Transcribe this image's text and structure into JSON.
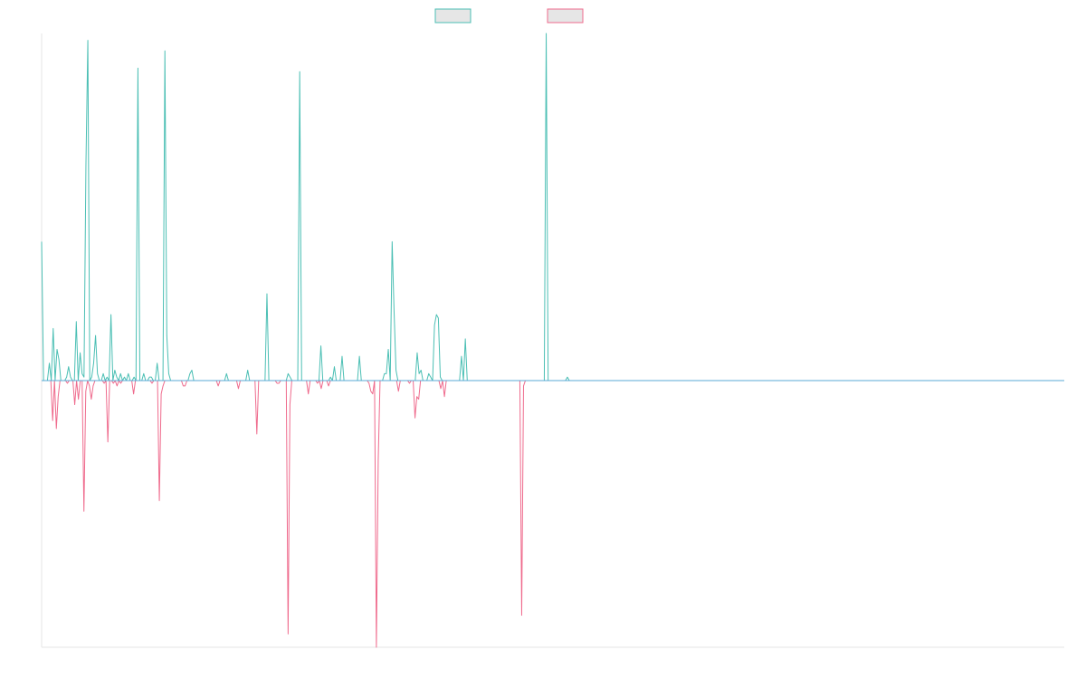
{
  "chart_data": {
    "type": "line",
    "title": "",
    "xlabel": "",
    "ylabel": "",
    "ylim": [
      -1,
      1
    ],
    "grid": false,
    "legend_position": "top-center",
    "series": [
      {
        "color": "#4bbfb4",
        "fill": "#e6e6e6",
        "values": [
          0.4,
          0,
          0,
          0,
          0.05,
          0,
          0.15,
          0,
          0.09,
          0.06,
          0,
          0,
          0,
          0.01,
          0.04,
          0.01,
          0,
          0,
          0.17,
          0,
          0.08,
          0.02,
          0.01,
          0.62,
          0.98,
          0,
          0.01,
          0.05,
          0.13,
          0.02,
          0,
          0,
          0.02,
          0,
          0.01,
          0,
          0.19,
          0,
          0.03,
          0.01,
          0,
          0.02,
          0,
          0.01,
          0,
          0.02,
          0,
          0,
          0.01,
          0,
          0.9,
          0,
          0,
          0.02,
          0,
          0,
          0.01,
          0.01,
          0,
          0,
          0.05,
          0,
          0,
          0,
          0.95,
          0.13,
          0.02,
          0,
          0,
          0,
          0,
          0,
          0,
          0,
          0,
          0,
          0,
          0.02,
          0.03,
          0,
          0,
          0,
          0,
          0,
          0,
          0,
          0,
          0,
          0,
          0,
          0,
          0,
          0,
          0,
          0,
          0,
          0.02,
          0,
          0,
          0,
          0,
          0,
          0,
          0,
          0,
          0,
          0,
          0.03,
          0,
          0,
          0,
          0,
          0,
          0,
          0,
          0,
          0,
          0.25,
          0,
          0,
          0,
          0,
          0,
          0,
          0,
          0,
          0,
          0,
          0.02,
          0.01,
          0,
          0,
          0,
          0,
          0.89,
          0,
          0,
          0,
          0,
          0,
          0,
          0,
          0,
          0,
          0,
          0.1,
          0,
          0,
          0,
          0,
          0.01,
          0,
          0.04,
          0,
          0,
          0,
          0.07,
          0,
          0,
          0,
          0,
          0,
          0,
          0,
          0,
          0.07,
          0,
          0,
          0,
          0,
          0,
          0,
          0,
          0,
          0,
          0,
          0,
          0,
          0.02,
          0.02,
          0.09,
          0,
          0.4,
          0.2,
          0.03,
          0,
          0,
          0,
          0,
          0,
          0,
          0,
          0,
          0,
          0,
          0.08,
          0.02,
          0.03,
          0,
          0,
          0,
          0.02,
          0.01,
          0,
          0.16,
          0.19,
          0.18,
          0.01,
          0,
          0,
          0,
          0,
          0,
          0,
          0,
          0,
          0,
          0,
          0.07,
          0,
          0.12,
          0,
          0,
          0,
          0,
          0,
          0,
          0,
          0,
          0,
          0,
          0,
          0,
          0,
          0,
          0,
          0,
          0,
          0,
          0,
          0,
          0,
          0,
          0,
          0,
          0,
          0,
          0,
          0,
          0,
          0,
          0,
          0,
          0,
          0,
          0,
          0,
          0,
          0,
          0,
          0,
          0,
          1,
          0,
          0,
          0,
          0,
          0,
          0,
          0,
          0,
          0,
          0,
          0.01,
          0,
          0,
          0,
          0,
          0,
          0,
          0,
          0,
          0,
          0,
          0,
          0,
          0,
          0,
          0,
          0,
          0,
          0,
          0,
          0,
          0,
          0,
          0,
          0,
          0,
          0,
          0,
          0,
          0,
          0,
          0,
          0,
          0,
          0,
          0,
          0,
          0,
          0,
          0,
          0,
          0,
          0,
          0,
          0,
          0,
          0,
          0,
          0,
          0,
          0,
          0,
          0,
          0,
          0,
          0,
          0,
          0,
          0,
          0,
          0,
          0,
          0,
          0,
          0,
          0,
          0,
          0,
          0,
          0,
          0,
          0,
          0,
          0,
          0,
          0,
          0,
          0,
          0,
          0,
          0,
          0,
          0,
          0,
          0,
          0,
          0,
          0,
          0,
          0,
          0,
          0,
          0,
          0,
          0,
          0,
          0,
          0,
          0,
          0,
          0,
          0,
          0,
          0,
          0,
          0,
          0,
          0,
          0,
          0,
          0,
          0,
          0,
          0,
          0,
          0,
          0,
          0,
          0,
          0,
          0,
          0,
          0,
          0,
          0,
          0,
          0,
          0,
          0,
          0,
          0,
          0,
          0,
          0,
          0,
          0,
          0,
          0,
          0,
          0,
          0,
          0,
          0,
          0,
          0,
          0,
          0,
          0,
          0,
          0,
          0,
          0,
          0,
          0,
          0,
          0,
          0,
          0,
          0,
          0,
          0,
          0,
          0,
          0,
          0,
          0,
          0,
          0,
          0,
          0,
          0,
          0,
          0,
          0,
          0,
          0,
          0,
          0,
          0,
          0,
          0,
          0,
          0,
          0,
          0,
          0,
          0,
          0,
          0,
          0,
          0,
          0,
          0,
          0,
          0,
          0,
          0,
          0,
          0,
          0,
          0,
          0,
          0,
          0,
          0,
          0,
          0,
          0,
          0,
          0,
          0,
          0,
          0,
          0,
          0,
          0,
          0,
          0,
          0,
          0,
          0,
          0,
          0,
          0,
          0,
          0,
          0,
          0,
          0,
          0,
          0,
          0,
          0,
          0,
          0,
          0,
          0,
          0,
          0,
          0,
          0,
          0,
          0,
          0,
          0,
          0,
          0,
          0,
          0,
          0,
          0,
          0,
          0,
          0,
          0,
          0,
          0,
          0,
          0
        ]
      },
      {
        "color": "#ef6b8d",
        "fill": "#e6e6e6",
        "values": [
          0,
          0,
          0,
          0,
          0,
          0,
          -0.15,
          0,
          -0.18,
          -0.06,
          0,
          0,
          0,
          0,
          -0.01,
          0,
          0,
          0,
          -0.09,
          0,
          -0.07,
          0,
          0,
          -0.49,
          -0.04,
          0,
          -0.02,
          -0.07,
          -0.02,
          0,
          0,
          0,
          0,
          0,
          -0.01,
          0,
          -0.23,
          0,
          0,
          -0.01,
          0,
          -0.02,
          0,
          -0.01,
          0,
          0,
          0,
          0,
          0,
          0,
          -0.05,
          0,
          0,
          0,
          0,
          0,
          0,
          0,
          0,
          0,
          -0.01,
          0,
          0,
          0,
          -0.45,
          -0.05,
          -0.02,
          0,
          0,
          0,
          0,
          0,
          0,
          0,
          0,
          0,
          0,
          -0.02,
          -0.02,
          0,
          0,
          0,
          0,
          0,
          0,
          0,
          0,
          0,
          0,
          0,
          0,
          0,
          0,
          0,
          0,
          0,
          -0.02,
          0,
          0,
          0,
          0,
          0,
          0,
          0,
          0,
          0,
          0,
          -0.03,
          0,
          0,
          0,
          0,
          0,
          0,
          0,
          0,
          0,
          -0.2,
          0,
          0,
          0,
          0,
          0,
          0,
          0,
          0,
          0,
          0,
          -0.01,
          -0.01,
          0,
          0,
          0,
          0,
          -0.95,
          -0.09,
          0,
          0,
          0,
          0,
          0,
          0,
          0,
          0,
          0,
          -0.05,
          0,
          0,
          0,
          0,
          -0.01,
          0,
          -0.03,
          0,
          0,
          0,
          -0.02,
          0,
          0,
          0,
          0,
          0,
          0,
          0,
          0,
          0,
          0,
          0,
          0,
          0,
          0,
          0,
          0,
          0,
          0,
          0,
          0,
          0,
          -0.01,
          -0.04,
          -0.05,
          0,
          -1,
          -0.3,
          0,
          0,
          0,
          0,
          0,
          0,
          0,
          0,
          0,
          0,
          -0.04,
          0,
          0,
          0,
          0,
          0,
          -0.01,
          0,
          0,
          -0.14,
          -0.06,
          -0.07,
          0,
          0,
          0,
          0,
          0,
          0,
          0,
          0,
          0,
          0,
          0,
          -0.03,
          0,
          -0.06,
          0,
          0,
          0,
          0,
          0,
          0,
          0,
          0,
          0,
          0,
          0,
          0,
          0,
          0,
          0,
          0,
          0,
          0,
          0,
          0,
          0,
          0,
          0,
          0,
          0,
          0,
          0,
          0,
          0,
          0,
          0,
          0,
          0,
          0,
          0,
          0,
          0,
          0,
          0,
          0,
          0,
          -0.88,
          -0.02,
          0,
          0,
          0,
          0,
          0,
          0,
          0,
          0,
          0,
          0,
          0,
          0,
          0,
          0,
          0,
          0,
          0,
          0,
          0,
          0,
          0,
          0,
          0,
          0,
          0,
          0,
          0,
          0,
          0,
          0,
          0,
          0,
          0,
          0,
          0,
          0,
          0,
          0,
          0,
          0,
          0,
          0,
          0,
          0,
          0,
          0,
          0,
          0,
          0,
          0,
          0,
          0,
          0,
          0,
          0,
          0,
          0,
          0,
          0,
          0,
          0,
          0,
          0,
          0,
          0,
          0,
          0,
          0,
          0,
          0,
          0,
          0,
          0,
          0,
          0,
          0,
          0,
          0,
          0,
          0,
          0,
          0,
          0,
          0,
          0,
          0,
          0,
          0,
          0,
          0,
          0,
          0,
          0,
          0,
          0,
          0,
          0,
          0,
          0,
          0,
          0,
          0,
          0,
          0,
          0,
          0,
          0,
          0,
          0,
          0,
          0,
          0,
          0,
          0,
          0,
          0,
          0,
          0,
          0,
          0,
          0,
          0,
          0,
          0,
          0,
          0,
          0,
          0,
          0,
          0,
          0,
          0,
          0,
          0,
          0,
          0,
          0,
          0,
          0,
          0,
          0,
          0,
          0,
          0,
          0,
          0,
          0,
          0,
          0,
          0,
          0,
          0,
          0,
          0,
          0,
          0,
          0,
          0,
          0,
          0,
          0,
          0,
          0,
          0,
          0,
          0,
          0,
          0,
          0,
          0,
          0,
          0,
          0,
          0,
          0,
          0,
          0,
          0,
          0,
          0,
          0,
          0,
          0,
          0,
          0,
          0,
          0,
          0,
          0,
          0,
          0,
          0,
          0,
          0,
          0,
          0,
          0,
          0,
          0,
          0,
          0,
          0,
          0,
          0,
          0,
          0,
          0,
          0,
          0,
          0,
          0,
          0,
          0,
          0,
          0,
          0,
          0,
          0,
          0,
          0,
          0,
          0,
          0,
          0,
          0,
          0,
          0,
          0,
          0,
          0,
          0,
          0,
          0,
          0,
          0,
          0,
          0,
          0,
          0,
          0,
          0,
          0,
          0,
          0,
          0,
          0,
          0,
          0,
          0,
          0,
          0,
          0,
          0,
          0,
          0,
          0,
          0,
          0,
          0,
          0,
          0,
          0,
          0,
          0,
          0,
          0,
          0,
          0,
          0,
          0,
          0,
          0,
          0,
          0,
          0,
          0,
          0,
          0,
          0,
          0,
          0,
          0,
          0,
          0,
          0,
          0,
          0,
          0,
          0,
          0,
          0,
          0,
          0,
          0
        ]
      }
    ],
    "baseline_color": "#5aa9d6"
  }
}
